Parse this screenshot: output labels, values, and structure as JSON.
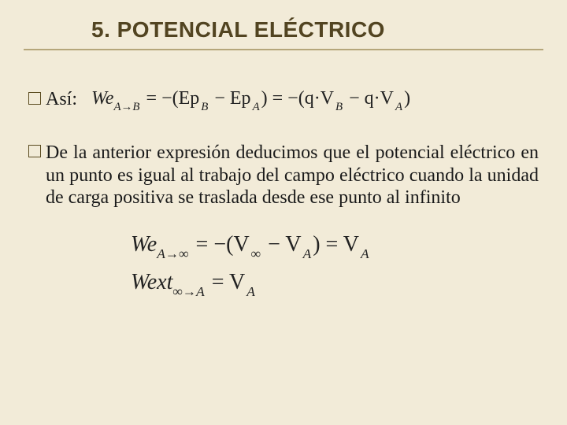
{
  "title": {
    "text": "5. POTENCIAL ELÉCTRICO",
    "fontsize": 28,
    "color": "#524421"
  },
  "background_color": "#f2ebd8",
  "underline_color": "#b5a67a",
  "bullet_border_color": "#5a4a1f",
  "row1": {
    "label": "Así:",
    "label_fontsize": 24,
    "formula_fontsize": 24,
    "formula": {
      "lead": "We",
      "sub1": "A→B",
      "eq1": " = −(Ep",
      "subB": "B",
      "minus": " − Ep",
      "subA": "A",
      "close1": ") = −(q·V",
      "subB2": "B",
      "minus2": " − q·V",
      "subA2": "A",
      "close2": ")"
    }
  },
  "paragraph": {
    "lead": "De",
    "rest": " la anterior expresión deducimos que el potencial eléctrico en un punto es igual al trabajo del campo eléctrico cuando la unidad de carga positiva se traslada desde ese punto al infinito",
    "fontsize": 24
  },
  "formula2": {
    "fontsize": 28,
    "lead": "We",
    "sub": "A→∞",
    "eq": " = −(V",
    "subInf": "∞",
    "minus": " − V",
    "subA": "A",
    "close": ") = V",
    "subA2": "A"
  },
  "formula3": {
    "fontsize": 28,
    "lead": "Wext",
    "sub": "∞→A",
    "eq": " = V",
    "subA": "A"
  }
}
